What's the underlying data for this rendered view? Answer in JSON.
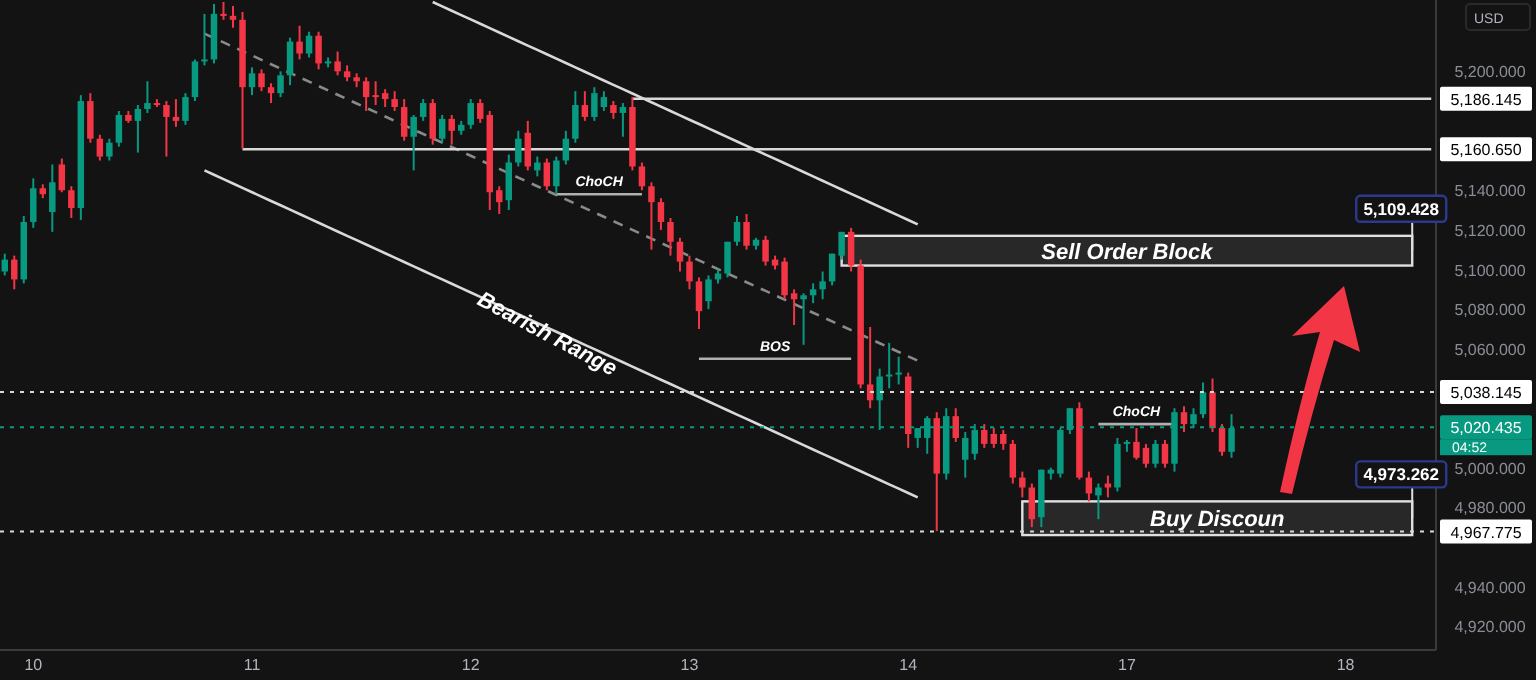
{
  "chart_data": {
    "type": "candlestick",
    "categories": [
      null,
      null,
      null,
      "10",
      null,
      null,
      null,
      null,
      null,
      null,
      null,
      null,
      null,
      null,
      null,
      null,
      null,
      null,
      null,
      null,
      null,
      null,
      null,
      null,
      null,
      null,
      "11",
      null,
      null,
      null,
      null,
      null,
      null,
      null,
      null,
      null,
      null,
      null,
      null,
      null,
      null,
      null,
      null,
      null,
      null,
      null,
      null,
      null,
      null,
      "12",
      null,
      null,
      null,
      null,
      null,
      null,
      null,
      null,
      null,
      null,
      null,
      null,
      null,
      null,
      null,
      null,
      null,
      null,
      null,
      null,
      null,
      null,
      "13",
      null,
      null,
      null,
      null,
      null,
      null,
      null,
      null,
      null,
      null,
      null,
      null,
      null,
      null,
      null,
      null,
      null,
      null,
      null,
      null,
      null,
      null,
      "14",
      null,
      null,
      null,
      null,
      null,
      null,
      null,
      null,
      null,
      null,
      null,
      null,
      null,
      null,
      null,
      null,
      null,
      null,
      null,
      null,
      null,
      null,
      "17",
      null,
      null,
      null,
      null,
      null,
      null,
      null,
      null,
      null,
      null,
      null,
      null,
      null,
      null,
      null,
      null,
      null,
      null,
      null,
      null,
      null,
      null,
      "18",
      null,
      null,
      null,
      null,
      null,
      null,
      null,
      null,
      null
    ],
    "ohlc": [
      [
        5099,
        5108,
        5097,
        5105
      ],
      [
        5105,
        5107,
        5090,
        5095
      ],
      [
        5095,
        5127,
        5093,
        5124
      ],
      [
        5124,
        5146,
        5121,
        5141
      ],
      [
        5141,
        5143,
        5136,
        5138
      ],
      [
        5129,
        5153,
        5119,
        5144
      ],
      [
        5153,
        5156,
        5139,
        5140
      ],
      [
        5140,
        5142,
        5126,
        5131
      ],
      [
        5131,
        5188,
        5125,
        5185
      ],
      [
        5185,
        5189,
        5164,
        5166
      ],
      [
        5166,
        5168,
        5155,
        5157
      ],
      [
        5157,
        5166,
        5155,
        5164
      ],
      [
        5164,
        5180,
        5162,
        5178
      ],
      [
        5178,
        5180,
        5174,
        5175
      ],
      [
        5175,
        5183,
        5159,
        5181
      ],
      [
        5181,
        5195,
        5179,
        5184
      ],
      [
        5184,
        5186,
        5182,
        5183
      ],
      [
        5183,
        5185,
        5157,
        5177
      ],
      [
        5177,
        5186,
        5172,
        5175
      ],
      [
        5175,
        5189,
        5173,
        5187
      ],
      [
        5187,
        5206,
        5185,
        5205
      ],
      [
        5205,
        5229,
        5203,
        5206
      ],
      [
        5206,
        5234,
        5204,
        5229
      ],
      [
        5229,
        5235,
        5226,
        5228
      ],
      [
        5228,
        5233,
        5222,
        5226
      ],
      [
        5226,
        5230,
        5161,
        5192
      ],
      [
        5192,
        5202,
        5188,
        5199
      ],
      [
        5199,
        5201,
        5190,
        5192
      ],
      [
        5192,
        5194,
        5184,
        5189
      ],
      [
        5189,
        5200,
        5187,
        5198
      ],
      [
        5198,
        5217,
        5193,
        5215
      ],
      [
        5215,
        5223,
        5206,
        5209
      ],
      [
        5209,
        5220,
        5207,
        5218
      ],
      [
        5218,
        5220,
        5201,
        5204
      ],
      [
        5204,
        5207,
        5202,
        5205
      ],
      [
        5205,
        5210,
        5198,
        5200
      ],
      [
        5200,
        5203,
        5195,
        5197
      ],
      [
        5197,
        5199,
        5192,
        5195
      ],
      [
        5195,
        5197,
        5180,
        5187
      ],
      [
        5188,
        5195,
        5183,
        5187
      ],
      [
        5189,
        5191,
        5182,
        5186
      ],
      [
        5186,
        5190,
        5180,
        5182
      ],
      [
        5182,
        5186,
        5165,
        5167
      ],
      [
        5167,
        5178,
        5150,
        5177
      ],
      [
        5177,
        5186,
        5175,
        5184
      ],
      [
        5184,
        5186,
        5163,
        5166
      ],
      [
        5166,
        5178,
        5164,
        5176
      ],
      [
        5176,
        5178,
        5163,
        5170
      ],
      [
        5170,
        5175,
        5168,
        5173
      ],
      [
        5173,
        5186,
        5171,
        5184
      ],
      [
        5184,
        5186,
        5174,
        5176
      ],
      [
        5178,
        5180,
        5130,
        5139
      ],
      [
        5140,
        5142,
        5128,
        5134
      ],
      [
        5135,
        5158,
        5130,
        5154
      ],
      [
        5154,
        5170,
        5152,
        5166
      ],
      [
        5169,
        5175,
        5150,
        5152
      ],
      [
        5150,
        5157,
        5147,
        5154
      ],
      [
        5154,
        5156,
        5140,
        5142
      ],
      [
        5142,
        5157,
        5138,
        5155
      ],
      [
        5155,
        5170,
        5153,
        5166
      ],
      [
        5166,
        5190,
        5164,
        5183
      ],
      [
        5183,
        5190,
        5175,
        5177
      ],
      [
        5177,
        5192,
        5175,
        5189
      ],
      [
        5182,
        5190,
        5180,
        5187
      ],
      [
        5183,
        5185,
        5176,
        5179
      ],
      [
        5179,
        5184,
        5167,
        5182
      ],
      [
        5182,
        5187,
        5150,
        5152
      ],
      [
        5152,
        5154,
        5140,
        5142
      ],
      [
        5142,
        5144,
        5110,
        5134
      ],
      [
        5134,
        5136,
        5120,
        5124
      ],
      [
        5124,
        5126,
        5107,
        5114
      ],
      [
        5114,
        5116,
        5099,
        5104
      ],
      [
        5104,
        5107,
        5090,
        5094
      ],
      [
        5094,
        5096,
        5070,
        5079
      ],
      [
        5084,
        5097,
        5080,
        5095
      ],
      [
        5095,
        5100,
        5093,
        5098
      ],
      [
        5098,
        5114,
        5096,
        5114
      ],
      [
        5114,
        5127,
        5112,
        5124
      ],
      [
        5124,
        5128,
        5110,
        5112
      ],
      [
        5112,
        5116,
        5110,
        5115
      ],
      [
        5115,
        5117,
        5102,
        5104
      ],
      [
        5105,
        5107,
        5100,
        5102
      ],
      [
        5104,
        5106,
        5085,
        5087
      ],
      [
        5088,
        5090,
        5072,
        5085
      ],
      [
        5085,
        5088,
        5062,
        5087
      ],
      [
        5087,
        5093,
        5083,
        5090
      ],
      [
        5090,
        5099,
        5085,
        5094
      ],
      [
        5094,
        5108,
        5092,
        5108
      ],
      [
        5107,
        5119,
        5105,
        5119
      ],
      [
        5119,
        5121,
        5099,
        5102
      ],
      [
        5102,
        5105,
        5040,
        5042
      ],
      [
        5042,
        5071,
        5030,
        5034
      ],
      [
        5034,
        5050,
        5019,
        5046
      ],
      [
        5046,
        5063,
        5040,
        5047
      ],
      [
        5047,
        5056,
        5042,
        5048
      ],
      [
        5046,
        5048,
        5010,
        5017
      ],
      [
        5015,
        5020,
        5010,
        5020
      ],
      [
        5015,
        5026,
        5007,
        5025
      ],
      [
        5025,
        5028,
        4968,
        4997
      ],
      [
        4997,
        5030,
        4994,
        5026
      ],
      [
        5026,
        5030,
        5013,
        5015
      ],
      [
        5004,
        5018,
        4995,
        5015
      ],
      [
        5007,
        5022,
        5004,
        5019
      ],
      [
        5019,
        5022,
        5010,
        5012
      ],
      [
        5017,
        5020,
        5010,
        5012
      ],
      [
        5017,
        5019,
        5009,
        5012
      ],
      [
        5012,
        5014,
        4992,
        4995
      ],
      [
        4995,
        4998,
        4985,
        4990
      ],
      [
        4990,
        4992,
        4970,
        4974
      ],
      [
        4975,
        4999,
        4970,
        4999
      ],
      [
        4997,
        5000,
        4994,
        4999
      ],
      [
        4997,
        5020,
        4995,
        5019
      ],
      [
        5019,
        5030,
        5017,
        5030
      ],
      [
        5030,
        5033,
        4994,
        4995
      ],
      [
        4995,
        4998,
        4983,
        4987
      ],
      [
        4986,
        4992,
        4974,
        4990
      ],
      [
        4992,
        4996,
        4985,
        4990
      ],
      [
        4990,
        5015,
        4988,
        5012
      ],
      [
        5012,
        5014,
        5008,
        5013
      ],
      [
        5013,
        5020,
        5004,
        5005
      ],
      [
        5010,
        5012,
        5000,
        5002
      ],
      [
        5002,
        5014,
        5000,
        5012
      ],
      [
        5012,
        5014,
        5000,
        5002
      ],
      [
        5002,
        5030,
        4998,
        5028
      ],
      [
        5028,
        5031,
        5018,
        5022
      ],
      [
        5022,
        5030,
        5020,
        5027
      ],
      [
        5027,
        5043,
        5025,
        5038
      ],
      [
        5038,
        5045,
        5018,
        5020
      ],
      [
        5020,
        5022,
        5006,
        5008
      ],
      [
        5008,
        5027,
        5005,
        5020
      ],
      null,
      null,
      null,
      null,
      null,
      null,
      null,
      null,
      null,
      null,
      null,
      null,
      null,
      null,
      null,
      null,
      null,
      null,
      null,
      null,
      null
    ],
    "series": [
      {
        "type": "line",
        "color": "#d9d9d9",
        "line_style": "solid",
        "values": [
          null,
          null,
          null,
          null,
          null,
          null,
          null,
          null,
          null,
          null,
          null,
          null,
          null,
          null,
          null,
          null,
          null,
          null,
          null,
          null,
          null,
          null,
          null,
          null,
          null,
          null,
          null,
          null,
          null,
          null,
          null,
          null,
          null,
          null,
          null,
          null,
          null,
          null,
          null,
          null,
          null,
          null,
          null,
          null,
          null,
          5235,
          5232.8,
          5230.6,
          5228.4,
          5226.2,
          5224,
          5221.8,
          5219.6,
          5217.4,
          5215.2,
          5213,
          5210.8,
          5208.6,
          5206.4,
          5204.2,
          5202,
          5199.8,
          5197.6,
          5195.4,
          5193.2,
          5191,
          5188.8,
          5186.6,
          5184.4,
          5182.2,
          5180,
          5177.8,
          5175.6,
          5173.4,
          5171.2,
          5169,
          5166.8,
          5164.6,
          5162.4,
          5160.2,
          5158,
          5155.8,
          5153.6,
          5151.4,
          5149.2,
          5147,
          5144.8,
          5142.6,
          5140.4,
          5138.2,
          5136,
          5133.8,
          5131.6,
          5129.4,
          5127.2,
          5125,
          5122.8,
          null,
          null,
          null,
          null,
          null,
          null,
          null,
          null,
          null,
          null,
          null,
          null,
          null,
          null,
          null,
          null,
          null,
          null,
          null,
          null,
          null,
          null,
          null,
          null,
          null,
          null,
          null,
          null,
          null,
          null,
          null,
          null,
          null,
          null,
          null,
          null,
          null,
          null,
          null,
          null,
          null,
          null,
          null,
          null,
          null,
          null,
          null,
          null,
          null,
          null,
          null,
          null,
          null,
          null
        ]
      },
      {
        "type": "line",
        "color": "#d9d9d9",
        "line_style": "solid",
        "values": [
          null,
          null,
          null,
          null,
          null,
          null,
          null,
          null,
          null,
          null,
          null,
          null,
          null,
          null,
          null,
          null,
          null,
          null,
          null,
          null,
          null,
          5150,
          5147.8,
          5145.6,
          5143.4,
          5141.2,
          5139,
          5136.8,
          5134.6,
          5132.4,
          5130.2,
          5128,
          5125.8,
          5123.6,
          5121.4,
          5119.2,
          5117,
          5114.8,
          5112.6,
          5110.4,
          5108.2,
          5106,
          5103.8,
          5101.6,
          5099.4,
          5097.2,
          5095,
          5092.8,
          5090.6,
          5088.4,
          5086.2,
          5084,
          5081.8,
          5079.6,
          5077.4,
          5075.2,
          5073,
          5070.8,
          5068.6,
          5066.4,
          5064.2,
          5062,
          5059.8,
          5057.6,
          5055.4,
          5053.2,
          5051,
          5048.8,
          5046.6,
          5044.4,
          5042.2,
          5040,
          5037.8,
          5035.6,
          5033.4,
          5031.2,
          5029,
          5026.8,
          5024.6,
          5022.4,
          5020.2,
          5018,
          5015.8,
          5013.6,
          5011.4,
          5009.2,
          5007,
          5004.8,
          5002.6,
          5000.4,
          4998.2,
          4996,
          4993.8,
          4991.6,
          4989.4,
          4987.2,
          4985,
          null,
          null,
          null,
          null,
          null,
          null,
          null,
          null,
          null,
          null,
          null,
          null,
          null,
          null,
          null,
          null,
          null,
          null,
          null,
          null,
          null,
          null,
          null,
          null,
          null,
          null,
          null,
          null,
          null,
          null,
          null,
          null,
          null,
          null,
          null,
          null,
          null,
          null,
          null,
          null,
          null,
          null,
          null,
          null,
          null,
          null,
          null,
          null,
          null,
          null,
          null,
          null,
          null,
          null
        ]
      },
      {
        "type": "line",
        "color": "#8a8a8a",
        "line_style": "dashed",
        "values": [
          null,
          null,
          null,
          null,
          null,
          null,
          null,
          null,
          null,
          null,
          null,
          null,
          null,
          null,
          null,
          null,
          null,
          null,
          null,
          null,
          null,
          5219,
          5216.8,
          5214.6,
          5212.4,
          5210.2,
          5208,
          5205.8,
          5203.6,
          5201.4,
          5199.2,
          5197,
          5194.8,
          5192.6,
          5190.4,
          5188.2,
          5186,
          5183.8,
          5181.6,
          5179.4,
          5177.2,
          5175,
          5172.8,
          5170.6,
          5168.4,
          5166.2,
          5164,
          5161.8,
          5159.6,
          5157.4,
          5155.2,
          5153,
          5150.8,
          5148.6,
          5146.4,
          5144.2,
          5142,
          5139.8,
          5137.6,
          5135.4,
          5133.2,
          5131,
          5128.8,
          5126.6,
          5124.4,
          5122.2,
          5120,
          5117.8,
          5115.6,
          5113.4,
          5111.2,
          5109,
          5106.8,
          5104.6,
          5102.4,
          5100.2,
          5098,
          5095.8,
          5093.6,
          5091.4,
          5089.2,
          5087,
          5084.8,
          5082.6,
          5080.4,
          5078.2,
          5076,
          5073.8,
          5071.6,
          5069.4,
          5067.2,
          5065,
          5062.8,
          5060.6,
          5058.4,
          5056.2,
          5054,
          null,
          null,
          null,
          null,
          null,
          null,
          null,
          null,
          null,
          null,
          null,
          null,
          null,
          null,
          null,
          null,
          null,
          null,
          null,
          null,
          null,
          null,
          null,
          null,
          null,
          null,
          null,
          null,
          null,
          null,
          null,
          null,
          null,
          null,
          null,
          null,
          null,
          null,
          null,
          null,
          null,
          null,
          null,
          null,
          null,
          null,
          null,
          null,
          null,
          null,
          null,
          null,
          null,
          null
        ]
      },
      {
        "type": "line",
        "color": "#d9d9d9",
        "line_style": "solid",
        "values": [
          null,
          null,
          null,
          null,
          null,
          null,
          null,
          null,
          null,
          null,
          null,
          null,
          null,
          null,
          null,
          null,
          null,
          null,
          null,
          null,
          null,
          null,
          null,
          null,
          null,
          null,
          null,
          null,
          null,
          null,
          null,
          null,
          null,
          null,
          null,
          null,
          null,
          null,
          null,
          null,
          null,
          null,
          null,
          null,
          null,
          null,
          null,
          null,
          null,
          null,
          null,
          null,
          null,
          null,
          null,
          null,
          null,
          null,
          null,
          null,
          null,
          null,
          null,
          null,
          null,
          null,
          5186.145,
          5186.145,
          5186.145,
          5186.145,
          5186.145,
          5186.145,
          5186.145,
          5186.145,
          5186.145,
          5186.145,
          5186.145,
          5186.145,
          5186.145,
          5186.145,
          5186.145,
          5186.145,
          5186.145,
          5186.145,
          5186.145,
          5186.145,
          5186.145,
          5186.145,
          5186.145,
          5186.145,
          5186.145,
          5186.145,
          5186.145,
          5186.145,
          5186.145,
          5186.145,
          5186.145,
          5186.145,
          5186.145,
          5186.145,
          5186.145,
          5186.145,
          5186.145,
          5186.145,
          5186.145,
          5186.145,
          5186.145,
          5186.145,
          5186.145,
          5186.145,
          5186.145,
          5186.145,
          5186.145,
          5186.145,
          5186.145,
          5186.145,
          5186.145,
          5186.145,
          5186.145,
          5186.145,
          5186.145,
          5186.145,
          5186.145,
          5186.145,
          5186.145,
          5186.145,
          5186.145,
          5186.145,
          5186.145,
          5186.145,
          5186.145,
          5186.145,
          5186.145,
          5186.145,
          5186.145,
          5186.145,
          5186.145,
          5186.145,
          5186.145,
          5186.145,
          5186.145,
          5186.145,
          5186.145,
          5186.145,
          5186.145,
          5186.145,
          5186.145,
          5186.145,
          5186.145,
          5186.145,
          5186.145
        ]
      },
      {
        "type": "line",
        "color": "#d9d9d9",
        "line_style": "solid",
        "values": [
          null,
          null,
          null,
          null,
          null,
          null,
          null,
          null,
          null,
          null,
          null,
          null,
          null,
          null,
          null,
          null,
          null,
          null,
          null,
          null,
          null,
          null,
          null,
          null,
          null,
          5160.65,
          5160.65,
          5160.65,
          5160.65,
          5160.65,
          5160.65,
          5160.65,
          5160.65,
          5160.65,
          5160.65,
          5160.65,
          5160.65,
          5160.65,
          5160.65,
          5160.65,
          5160.65,
          5160.65,
          5160.65,
          5160.65,
          5160.65,
          5160.65,
          5160.65,
          5160.65,
          5160.65,
          5160.65,
          5160.65,
          5160.65,
          5160.65,
          5160.65,
          5160.65,
          5160.65,
          5160.65,
          5160.65,
          5160.65,
          5160.65,
          5160.65,
          5160.65,
          5160.65,
          5160.65,
          5160.65,
          5160.65,
          5160.65,
          5160.65,
          5160.65,
          5160.65,
          5160.65,
          5160.65,
          5160.65,
          5160.65,
          5160.65,
          5160.65,
          5160.65,
          5160.65,
          5160.65,
          5160.65,
          5160.65,
          5160.65,
          5160.65,
          5160.65,
          5160.65,
          5160.65,
          5160.65,
          5160.65,
          5160.65,
          5160.65,
          5160.65,
          5160.65,
          5160.65,
          5160.65,
          5160.65,
          5160.65,
          5160.65,
          5160.65,
          5160.65,
          5160.65,
          5160.65,
          5160.65,
          5160.65,
          5160.65,
          5160.65,
          5160.65,
          5160.65,
          5160.65,
          5160.65,
          5160.65,
          5160.65,
          5160.65,
          5160.65,
          5160.65,
          5160.65,
          5160.65,
          5160.65,
          5160.65,
          5160.65,
          5160.65,
          5160.65,
          5160.65,
          5160.65,
          5160.65,
          5160.65,
          5160.65,
          5160.65,
          5160.65,
          5160.65,
          5160.65,
          5160.65,
          5160.65,
          5160.65,
          5160.65,
          5160.65,
          5160.65,
          5160.65,
          5160.65,
          5160.65,
          5160.65,
          5160.65,
          5160.65,
          5160.65,
          5160.65,
          5160.65,
          5160.65,
          5160.65,
          5160.65,
          5160.65,
          5160.65,
          5160.65
        ]
      },
      {
        "type": "line",
        "color": "#b0b0b0",
        "line_style": "solid",
        "values": [
          null,
          null,
          null,
          null,
          null,
          null,
          null,
          null,
          null,
          null,
          null,
          null,
          null,
          null,
          null,
          null,
          null,
          null,
          null,
          null,
          null,
          null,
          null,
          null,
          null,
          null,
          null,
          null,
          null,
          null,
          null,
          null,
          null,
          null,
          null,
          null,
          null,
          null,
          null,
          null,
          null,
          null,
          null,
          null,
          null,
          null,
          null,
          null,
          null,
          null,
          null,
          null,
          null,
          null,
          null,
          null,
          null,
          null,
          5138,
          5138,
          5138,
          5138,
          5138,
          5138,
          5138,
          5138,
          5138,
          5138,
          null,
          null,
          null,
          null,
          null,
          null,
          null,
          null,
          null,
          null,
          null,
          null,
          null,
          null,
          null,
          null,
          null,
          null,
          null,
          null,
          null,
          null,
          null,
          null,
          null,
          null,
          null,
          null,
          null,
          null,
          null,
          null,
          null,
          null,
          null,
          null,
          null,
          null,
          null,
          null,
          null,
          null,
          null,
          null,
          null,
          null,
          null,
          null,
          null,
          null,
          null,
          null,
          null,
          null,
          null,
          null,
          null,
          null,
          null,
          null,
          null,
          null,
          null,
          null,
          null,
          null,
          null,
          null,
          null,
          null,
          null,
          null,
          null,
          null,
          null,
          null,
          null,
          null,
          null,
          null,
          null,
          null,
          null
        ]
      },
      {
        "type": "line",
        "color": "#b0b0b0",
        "line_style": "solid",
        "values": [
          null,
          null,
          null,
          null,
          null,
          null,
          null,
          null,
          null,
          null,
          null,
          null,
          null,
          null,
          null,
          null,
          null,
          null,
          null,
          null,
          null,
          null,
          null,
          null,
          null,
          null,
          null,
          null,
          null,
          null,
          null,
          null,
          null,
          null,
          null,
          null,
          null,
          null,
          null,
          null,
          null,
          null,
          null,
          null,
          null,
          null,
          null,
          null,
          null,
          null,
          null,
          null,
          null,
          null,
          null,
          null,
          null,
          null,
          null,
          null,
          null,
          null,
          null,
          null,
          null,
          null,
          null,
          null,
          null,
          null,
          null,
          null,
          null,
          5055,
          5055,
          5055,
          5055,
          5055,
          5055,
          5055,
          5055,
          5055,
          5055,
          5055,
          5055,
          5055,
          5055,
          5055,
          5055,
          5055,
          null,
          null,
          null,
          null,
          null,
          null,
          null,
          null,
          null,
          null,
          null,
          null,
          null,
          null,
          null,
          null,
          null,
          null,
          null,
          null,
          null,
          null,
          null,
          null,
          null,
          null,
          null,
          null,
          null,
          null,
          null,
          null,
          null,
          null,
          null,
          null,
          null,
          null,
          null,
          null,
          null,
          null,
          null,
          null,
          null,
          null,
          null,
          null,
          null,
          null,
          null,
          null,
          null,
          null,
          null,
          null,
          null,
          null,
          null,
          null,
          null
        ]
      },
      {
        "type": "line",
        "color": "#b0b0b0",
        "line_style": "solid",
        "values": [
          null,
          null,
          null,
          null,
          null,
          null,
          null,
          null,
          null,
          null,
          null,
          null,
          null,
          null,
          null,
          null,
          null,
          null,
          null,
          null,
          null,
          null,
          null,
          null,
          null,
          null,
          null,
          null,
          null,
          null,
          null,
          null,
          null,
          null,
          null,
          null,
          null,
          null,
          null,
          null,
          null,
          null,
          null,
          null,
          null,
          null,
          null,
          null,
          null,
          null,
          null,
          null,
          null,
          null,
          null,
          null,
          null,
          null,
          null,
          null,
          null,
          null,
          null,
          null,
          null,
          null,
          null,
          null,
          null,
          null,
          null,
          null,
          null,
          null,
          null,
          null,
          null,
          null,
          null,
          null,
          null,
          null,
          null,
          null,
          null,
          null,
          null,
          null,
          null,
          null,
          null,
          null,
          null,
          null,
          null,
          null,
          null,
          null,
          null,
          null,
          null,
          null,
          null,
          null,
          null,
          null,
          null,
          null,
          null,
          null,
          null,
          null,
          null,
          null,
          null,
          5022,
          5022,
          5022,
          5022,
          5022,
          5022,
          5022,
          5022,
          5022,
          null,
          null,
          null,
          null,
          null,
          null,
          null,
          null,
          null,
          null,
          null,
          null,
          null,
          null,
          null,
          null,
          null,
          null,
          null,
          null,
          null,
          null,
          null,
          null,
          null,
          null,
          null
        ]
      }
    ],
    "ylim": [
      4908,
      5236
    ],
    "yticks": [
      {
        "value": 4920,
        "label": "4,920.000"
      },
      {
        "value": 4940,
        "label": "4,940.000"
      },
      {
        "value": 4980,
        "label": "4,980.000"
      },
      {
        "value": 5000,
        "label": "5,000.000"
      },
      {
        "value": 5060,
        "label": "5,060.000"
      },
      {
        "value": 5080,
        "label": "5,080.000"
      },
      {
        "value": 5100,
        "label": "5,100.000"
      },
      {
        "value": 5120,
        "label": "5,120.000"
      },
      {
        "value": 5140,
        "label": "5,140.000"
      },
      {
        "value": 5200,
        "label": "5,200.000"
      }
    ],
    "ref_lines": [
      {
        "axis": "y",
        "value": 5038.145,
        "label": "5,038.145",
        "color": "#d9d9d9",
        "line_style": "dotted"
      },
      {
        "axis": "y",
        "value": 4967.775,
        "label": "4,967.775",
        "color": "#d9d9d9",
        "line_style": "dotted"
      },
      {
        "axis": "y",
        "value": 5020.435,
        "label": "5,020.435",
        "color": "#089981",
        "line_style": "dotted"
      }
    ],
    "bands": [
      {
        "axis": "y",
        "from": 5102,
        "to": 5117,
        "label": "Sell Order Block",
        "color": "#e0e0e0"
      },
      {
        "axis": "y",
        "from": 4966,
        "to": 4983,
        "label": "Buy Discoun",
        "color": "#e0e0e0"
      }
    ],
    "annotations": [
      "USD",
      "5,186.145",
      "5,160.650",
      "5,109.428",
      "4,973.262",
      {
        "text": "ChoCH",
        "y": 5138
      },
      {
        "text": "BOS",
        "y": 5055
      },
      {
        "text": "ChoCH",
        "y": 5022
      },
      "Bearish Range",
      "04:52"
    ]
  }
}
